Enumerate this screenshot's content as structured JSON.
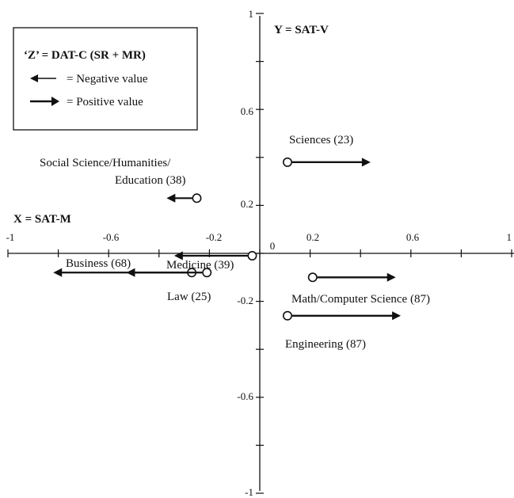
{
  "chart_data": {
    "type": "scatter",
    "xlabel": "X = SAT-M",
    "ylabel": "Y = SAT-V",
    "xlim": [
      -1,
      1
    ],
    "ylim": [
      -1,
      1
    ],
    "x_ticks": [
      "-1",
      "-0.6",
      "-0.2",
      "0.2",
      "0.6",
      "1"
    ],
    "y_ticks": [
      "1",
      "0.6",
      "0.2",
      "-0.2",
      "-0.6",
      "-1"
    ],
    "origin_label": "0",
    "grid": false,
    "legend": {
      "position": "top-left",
      "title": "‘Z’ = DAT-C (SR + MR)",
      "items": [
        {
          "symbol": "left-arrow",
          "text": "=  Negative value"
        },
        {
          "symbol": "right-arrow",
          "text": "=  Positive value"
        }
      ]
    },
    "points": [
      {
        "label": "Social Science/Humanities/ Education (38)",
        "x": -0.25,
        "y": 0.23,
        "z": -0.12
      },
      {
        "label": "Sciences (23)",
        "x": 0.11,
        "y": 0.38,
        "z": 0.33
      },
      {
        "label": "Business (68)",
        "x": -0.27,
        "y": -0.08,
        "z": -0.55
      },
      {
        "label": "Medicine (39)",
        "x": -0.03,
        "y": -0.01,
        "z": -0.31
      },
      {
        "label": "Law (25)",
        "x": -0.21,
        "y": -0.08,
        "z": -0.32
      },
      {
        "label": "Math/Computer Science (87)",
        "x": 0.21,
        "y": -0.1,
        "z": 0.33
      },
      {
        "label": "Engineering (87)",
        "x": 0.11,
        "y": -0.26,
        "z": 0.45
      }
    ]
  }
}
